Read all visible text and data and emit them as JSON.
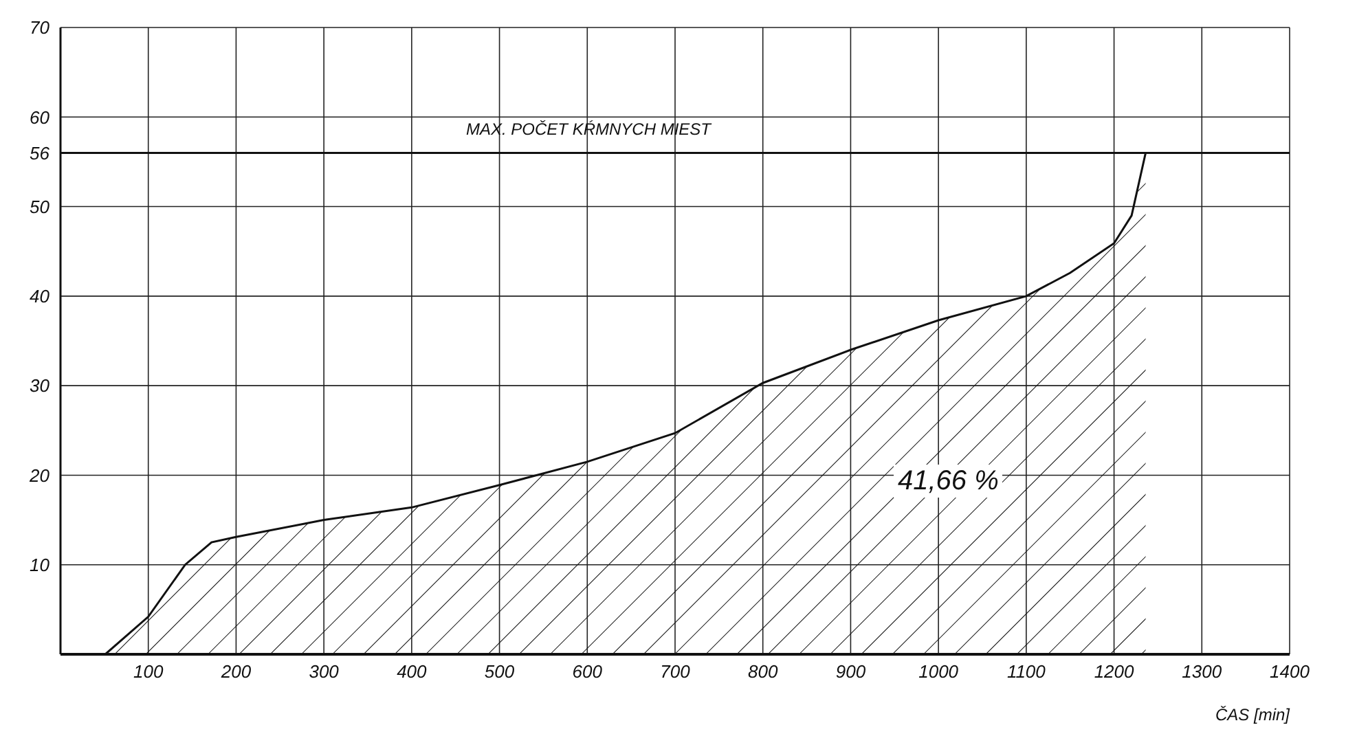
{
  "chart_data": {
    "type": "area",
    "xlabel": "ČAS [min]",
    "x": [
      51,
      100,
      142,
      172,
      200,
      300,
      400,
      500,
      600,
      700,
      800,
      900,
      1000,
      1100,
      1150,
      1200,
      1220,
      1236
    ],
    "series": [
      {
        "color": "#111111",
        "values": [
          0,
          4.2,
          10,
          12.5,
          13.1,
          15,
          16.4,
          18.9,
          21.5,
          24.7,
          30.3,
          34,
          37.3,
          40,
          42.6,
          45.9,
          49,
          56
        ]
      }
    ],
    "xlim": [
      0,
      1400
    ],
    "xticks": [
      100,
      200,
      300,
      400,
      500,
      600,
      700,
      800,
      900,
      1000,
      1100,
      1200,
      1300,
      1400
    ],
    "ylim": [
      0,
      70
    ],
    "yticks": [
      {
        "value": 0,
        "label": null
      },
      10,
      20,
      30,
      40,
      50,
      56,
      60,
      70
    ],
    "grid": true,
    "ref_lines": [
      {
        "axis": "y",
        "value": 56,
        "label": "MAX.  POČET  KŔMNYCH  MIEST",
        "color": "#111111"
      }
    ],
    "annotations": [
      "41,66 %"
    ]
  }
}
